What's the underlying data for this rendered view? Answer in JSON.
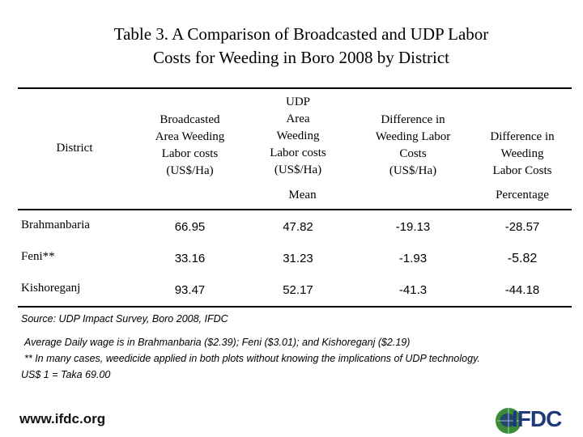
{
  "title": {
    "line1": "Table 3. A Comparison of Broadcasted and UDP Labor",
    "line2": "Costs for Weeding in Boro 2008 by District"
  },
  "table": {
    "headers": {
      "district": "District",
      "broadcasted": [
        "Broadcasted",
        "Area Weeding",
        "Labor costs",
        "(US$/Ha)"
      ],
      "udp": [
        "UDP",
        "Area",
        "Weeding",
        "Labor costs",
        "(US$/Ha)"
      ],
      "difference": [
        "Difference in",
        "Weeding Labor",
        "Costs",
        "(US$/Ha)"
      ],
      "difference_pct": [
        "Difference in",
        "Weeding",
        "Labor Costs"
      ]
    },
    "subheaders": {
      "mean": "Mean",
      "percentage": "Percentage"
    },
    "rows": [
      {
        "district": "Brahmanbaria",
        "broadcasted": "66.95",
        "udp": "47.82",
        "difference": "-19.13",
        "percentage": "-28.57"
      },
      {
        "district": "Feni**",
        "broadcasted": "33.16",
        "udp": "31.23",
        "difference": "-1.93",
        "percentage": "-5.82"
      },
      {
        "district": "Kishoreganj",
        "broadcasted": "93.47",
        "udp": "52.17",
        "difference": "-41.3",
        "percentage": "-44.18"
      }
    ]
  },
  "notes": {
    "source": "Source:  UDP Impact Survey, Boro 2008, IFDC",
    "wage": "Average Daily wage is in Brahmanbaria ($2.39); Feni ($3.01); and Kishoreganj ($2.19)",
    "weedicide": "**  In many cases, weedicide applied in both plots without knowing the implications of UDP technology.",
    "exchange": "US$ 1 = Taka 69.00"
  },
  "footer": {
    "url": "www.ifdc.org",
    "logo_text": "IFDC"
  },
  "colors": {
    "logo_blue": "#1e3a78",
    "logo_green": "#3a8a3a"
  }
}
